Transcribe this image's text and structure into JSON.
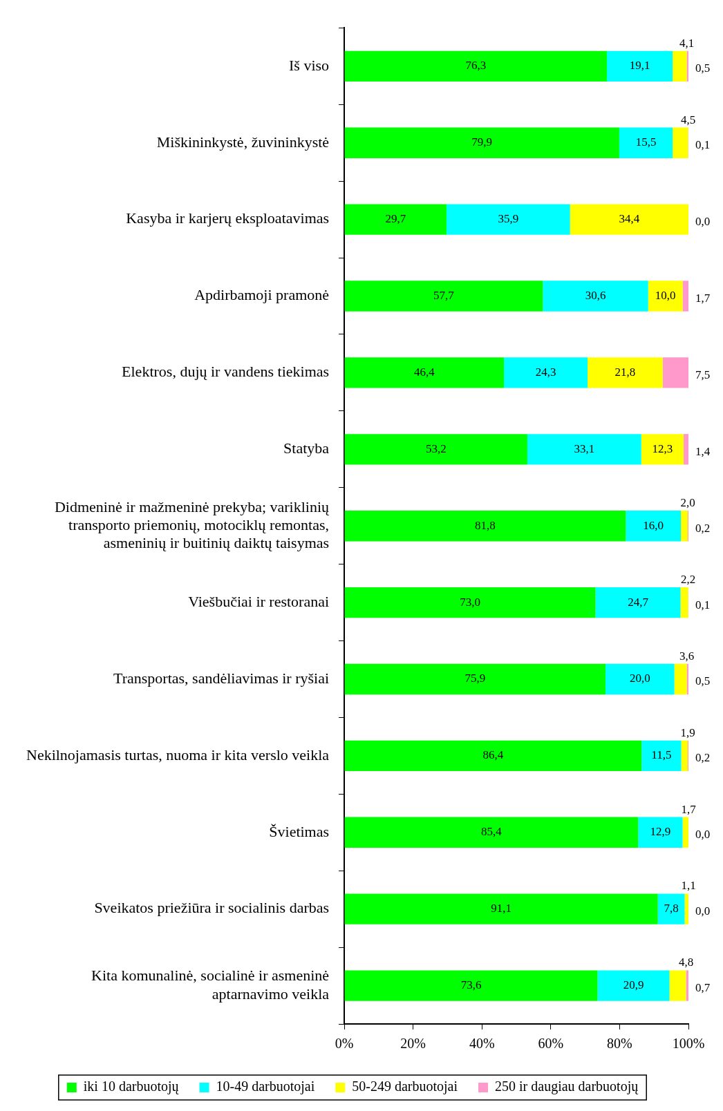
{
  "chart_data": {
    "type": "bar",
    "orientation": "horizontal",
    "stacked": true,
    "legend": "bottom",
    "grid": false,
    "categories": [
      "Iš viso",
      "Miškininkystė, žuvininkystė",
      "Kasyba ir karjerų eksploatavimas",
      "Apdirbamoji pramonė",
      "Elektros, dujų ir vandens tiekimas",
      "Statyba",
      "Didmeninė ir mažmeninė prekyba; variklinių transporto priemonių, motociklų remontas, asmeninių ir buitinių daiktų taisymas",
      "Viešbučiai ir restoranai",
      "Transportas, sandėliavimas ir ryšiai",
      "Nekilnojamasis turtas, nuoma ir kita verslo veikla",
      "Švietimas",
      "Sveikatos priežiūra ir socialinis darbas",
      "Kita komunalinė, socialinė ir asmeninė aptarnavimo veikla"
    ],
    "xlim": [
      0,
      100
    ],
    "xticks": [
      {
        "value": 0,
        "label": "0%"
      },
      {
        "value": 20,
        "label": "20%"
      },
      {
        "value": 40,
        "label": "40%"
      },
      {
        "value": 60,
        "label": "60%"
      },
      {
        "value": 80,
        "label": "80%"
      },
      {
        "value": 100,
        "label": "100%"
      }
    ],
    "series": [
      {
        "name": "iki 10 darbuotojų",
        "color": "#00ff00",
        "values": [
          76.3,
          79.9,
          29.7,
          57.7,
          46.4,
          53.2,
          81.8,
          73.0,
          75.9,
          86.4,
          85.4,
          91.1,
          73.6
        ],
        "value_labels": [
          "76,3",
          "79,9",
          "29,7",
          "57,7",
          "46,4",
          "53,2",
          "81,8",
          "73,0",
          "75,9",
          "86,4",
          "85,4",
          "91,1",
          "73,6"
        ]
      },
      {
        "name": "10-49 darbuotojai",
        "color": "#00ffff",
        "values": [
          19.1,
          15.5,
          35.9,
          30.6,
          24.3,
          33.1,
          16.0,
          24.7,
          20.0,
          11.5,
          12.9,
          7.8,
          20.9
        ],
        "value_labels": [
          "19,1",
          "15,5",
          "35,9",
          "30,6",
          "24,3",
          "33,1",
          "16,0",
          "24,7",
          "20,0",
          "11,5",
          "12,9",
          "7,8",
          "20,9"
        ]
      },
      {
        "name": "50-249 darbuotojai",
        "color": "#ffff00",
        "values": [
          4.1,
          4.5,
          34.4,
          10.0,
          21.8,
          12.3,
          2.0,
          2.2,
          3.6,
          1.9,
          1.7,
          1.1,
          4.8
        ],
        "value_labels": [
          "4,1",
          "4,5",
          "34,4",
          "10,0",
          "21,8",
          "12,3",
          "2,0",
          "2,2",
          "3,6",
          "1,9",
          "1,7",
          "1,1",
          "4,8"
        ]
      },
      {
        "name": "250 ir daugiau darbuotojų",
        "color": "#ff99cc",
        "values": [
          0.5,
          0.1,
          0.0,
          1.7,
          7.5,
          1.4,
          0.2,
          0.1,
          0.5,
          0.2,
          0.0,
          0.0,
          0.7
        ],
        "value_labels": [
          "0,5",
          "0,1",
          "0,0",
          "1,7",
          "7,5",
          "1,4",
          "0,2",
          "0,1",
          "0,5",
          "0,2",
          "0,0",
          "0,0",
          "0,7"
        ]
      }
    ]
  }
}
